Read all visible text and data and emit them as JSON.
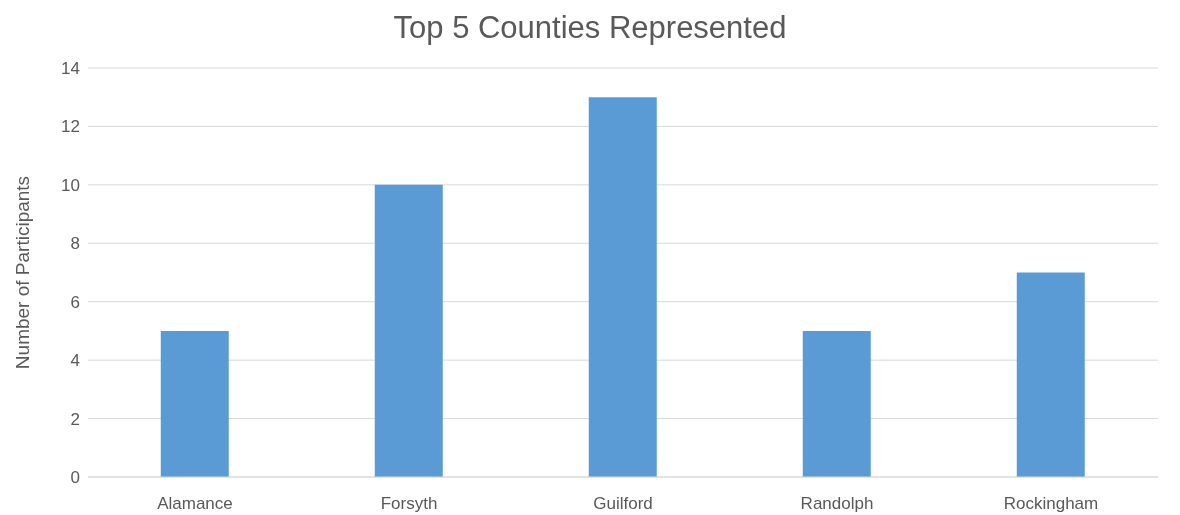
{
  "chart_data": {
    "type": "bar",
    "title": "Top 5 Counties Represented",
    "ylabel": "Number of Participants",
    "categories": [
      "Alamance",
      "Forsyth",
      "Guilford",
      "Randolph",
      "Rockingham"
    ],
    "values": [
      5,
      10,
      13,
      5,
      7
    ],
    "color": "#5b9bd5",
    "ylim": [
      0,
      14
    ],
    "yticks": [
      0,
      2,
      4,
      6,
      8,
      10,
      12,
      14
    ],
    "grid": "y"
  }
}
